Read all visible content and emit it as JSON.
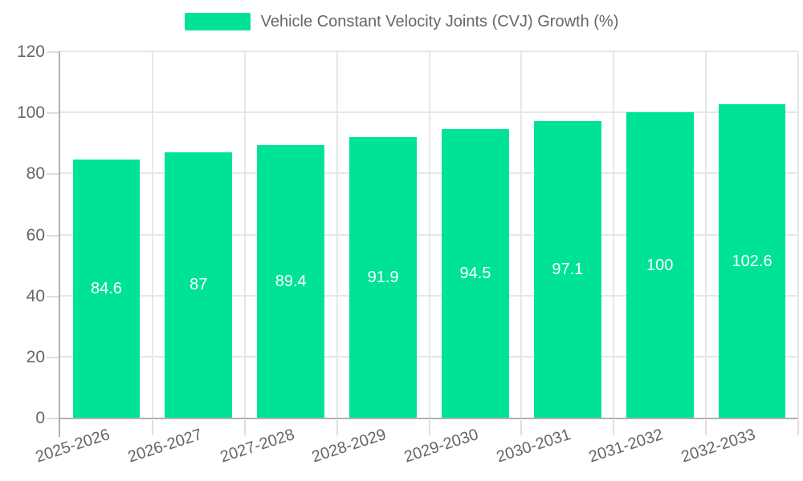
{
  "chart_data": {
    "type": "bar",
    "title": "Vehicle Constant Velocity Joints (CVJ) Growth (%)",
    "series_name": "Vehicle Constant Velocity Joints (CVJ) Growth (%)",
    "categories": [
      "2025-2026",
      "2026-2027",
      "2027-2028",
      "2028-2029",
      "2029-2030",
      "2030-2031",
      "2031-2032",
      "2032-2033"
    ],
    "values": [
      84.6,
      87,
      89.4,
      91.9,
      94.5,
      97.1,
      100,
      102.6
    ],
    "data_labels": [
      "84.6",
      "87",
      "89.4",
      "91.9",
      "94.5",
      "97.1",
      "100",
      "102.6"
    ],
    "xlabel": "",
    "ylabel": "",
    "ylim": [
      0,
      120
    ],
    "yticks": [
      0,
      20,
      40,
      60,
      80,
      100,
      120
    ],
    "grid": true,
    "legend_position": "top",
    "colors": {
      "bar": "#00E396",
      "grid_line": "#e7e7e7",
      "axis_line": "#b1b1b1",
      "tick_mark": "#dedede",
      "tick_label": "#666666",
      "legend_text": "#666666",
      "value_label": "#ffffff",
      "background": "#ffffff"
    }
  }
}
